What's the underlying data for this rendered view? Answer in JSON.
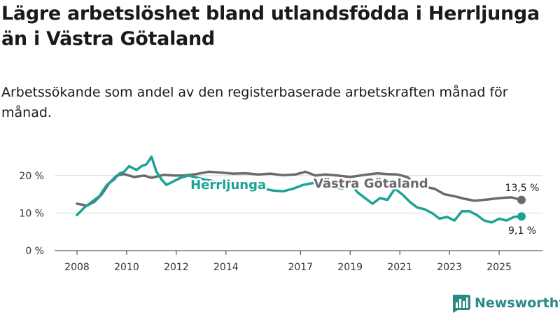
{
  "title": "Lägre arbetslöshet bland utlandsfödda i Herrljunga än i Västra Götaland",
  "subtitle": "Arbetssökande som andel av den registerbaserade arbetskraften månad för månad.",
  "brand": {
    "name": "Newsworthy",
    "icon": "newsworthy-logo-icon"
  },
  "colors": {
    "herrljunga": "#1aa396",
    "vastra_gotaland": "#6b6b6e",
    "grid": "#d9d9d9",
    "axis": "#333333"
  },
  "chart_data": {
    "type": "line",
    "title": "Lägre arbetslöshet bland utlandsfödda i Herrljunga än i Västra Götaland",
    "xlabel": "",
    "ylabel": "",
    "xlim": [
      2007.95,
      2026.2
    ],
    "ylim": [
      0,
      25
    ],
    "yticks": [
      0,
      10,
      20
    ],
    "ytick_labels": [
      "0 %",
      "10 %",
      "20 %"
    ],
    "xticks": [
      2008,
      2010,
      2012,
      2014,
      2017,
      2019,
      2021,
      2023,
      2025
    ],
    "xtick_labels": [
      "2008",
      "2010",
      "2012",
      "2014",
      "2017",
      "2019",
      "2021",
      "2023",
      "2025"
    ],
    "grid": "horizontal",
    "series": [
      {
        "name": "Västra Götaland",
        "color": "#6b6b6e",
        "label": "Västra Götaland",
        "label_at": [
          2012.55,
          19.0
        ],
        "end_label": "13,5 %",
        "end_label_at": [
          2025.0,
          17.2
        ],
        "x": [
          2008.0,
          2008.4,
          2008.7,
          2009.0,
          2009.3,
          2009.6,
          2009.9,
          2010.3,
          2010.7,
          2011.0,
          2011.5,
          2011.9,
          2012.3,
          2012.8,
          2013.3,
          2013.8,
          2014.3,
          2014.8,
          2015.3,
          2015.8,
          2016.3,
          2016.8,
          2017.2,
          2017.6,
          2018.0,
          2018.5,
          2019.0,
          2019.4,
          2019.7,
          2020.1,
          2020.5,
          2020.9,
          2021.3,
          2021.7,
          2022.0,
          2022.4,
          2022.8,
          2023.2,
          2023.6,
          2024.0,
          2024.5,
          2025.0,
          2025.5,
          2025.9
        ],
        "y": [
          12.5,
          12.0,
          13.0,
          15.0,
          18.0,
          20.0,
          20.4,
          19.6,
          20.0,
          19.4,
          20.2,
          20.0,
          20.0,
          20.4,
          21.0,
          20.8,
          20.5,
          20.6,
          20.3,
          20.5,
          20.1,
          20.3,
          21.0,
          20.0,
          20.3,
          20.0,
          19.6,
          20.0,
          20.3,
          20.6,
          20.4,
          20.3,
          19.6,
          17.5,
          17.0,
          16.5,
          15.0,
          14.5,
          13.8,
          13.3,
          13.6,
          14.0,
          14.2,
          13.5
        ]
      },
      {
        "name": "Herrljunga",
        "color": "#1aa396",
        "label": "Herrljunga",
        "label_at": [
          2012.4,
          18.5
        ],
        "end_label": "9,1 %",
        "end_label_at": [
          2025.95,
          5.8
        ],
        "x": [
          2008.0,
          2008.3,
          2008.6,
          2008.9,
          2009.2,
          2009.5,
          2009.7,
          2009.9,
          2010.1,
          2010.4,
          2010.6,
          2010.8,
          2011.0,
          2011.2,
          2011.4,
          2011.6,
          2011.9,
          2012.2,
          2012.5,
          2012.8,
          2013.1,
          2013.5,
          2013.9,
          2014.3,
          2014.7,
          2015.1,
          2015.5,
          2015.9,
          2016.3,
          2016.7,
          2017.1,
          2017.5,
          2017.9,
          2018.3,
          2018.7,
          2019.0,
          2019.3,
          2019.6,
          2019.9,
          2020.2,
          2020.5,
          2020.8,
          2021.1,
          2021.4,
          2021.7,
          2022.0,
          2022.3,
          2022.6,
          2022.9,
          2023.2,
          2023.5,
          2023.8,
          2024.1,
          2024.4,
          2024.7,
          2025.0,
          2025.3,
          2025.6,
          2025.9
        ],
        "y": [
          9.5,
          11.5,
          13.0,
          14.5,
          17.5,
          19.0,
          20.5,
          21.0,
          22.5,
          21.5,
          22.5,
          23.0,
          25.0,
          21.0,
          19.0,
          17.5,
          18.5,
          19.5,
          20.0,
          19.5,
          19.0,
          18.5,
          18.0,
          17.5,
          17.2,
          17.0,
          16.5,
          16.0,
          15.8,
          16.5,
          17.5,
          18.0,
          17.5,
          17.0,
          16.5,
          18.0,
          15.5,
          14.0,
          12.5,
          14.0,
          13.5,
          16.5,
          15.0,
          13.0,
          11.5,
          11.0,
          10.0,
          8.5,
          9.0,
          8.0,
          10.5,
          10.5,
          9.5,
          8.0,
          7.5,
          8.5,
          8.0,
          9.0,
          9.1
        ]
      }
    ]
  }
}
